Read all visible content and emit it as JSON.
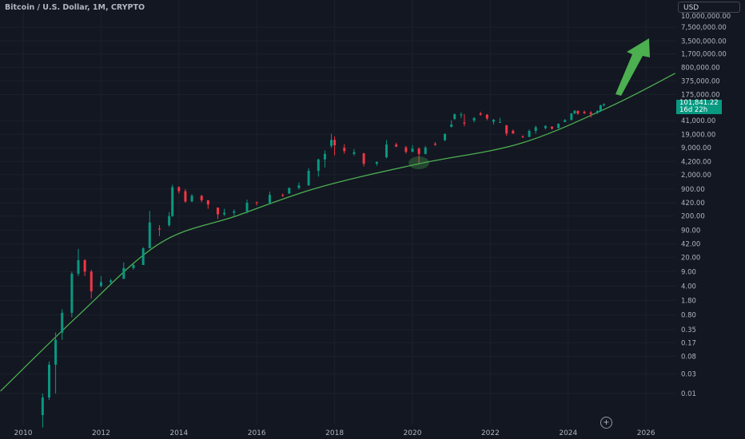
{
  "header": {
    "title": "Bitcoin / U.S. Dollar, 1M, CRYPTO",
    "currency": "USD"
  },
  "price_label": {
    "price": "101,841.22",
    "countdown": "16d 22h"
  },
  "colors": {
    "background": "#131722",
    "up": "#089981",
    "down": "#f23645",
    "trendline": "#4caf50",
    "arrow": "#4caf50",
    "grid": "#1c202b"
  },
  "chart_data": {
    "type": "candlestick",
    "title": "Bitcoin / U.S. Dollar, 1M, CRYPTO",
    "y_scale": "log",
    "ylim": [
      0.0015,
      10000000
    ],
    "xlim": [
      "2009-06",
      "2027-10"
    ],
    "grid": true,
    "x_ticks": [
      "2010",
      "2012",
      "2014",
      "2016",
      "2018",
      "2020",
      "2022",
      "2024",
      "2026"
    ],
    "y_ticks": [
      {
        "value": 10000000,
        "label": "10,000,000.00"
      },
      {
        "value": 7500000,
        "label": "7,500,000.00"
      },
      {
        "value": 3500000,
        "label": "3,500,000.00"
      },
      {
        "value": 1700000,
        "label": "1,700,000.00"
      },
      {
        "value": 800000,
        "label": "800,000.00"
      },
      {
        "value": 375000,
        "label": "375,000.00"
      },
      {
        "value": 175000,
        "label": "175,000.00"
      },
      {
        "value": 41000,
        "label": "41,000.00"
      },
      {
        "value": 19000,
        "label": "19,000.00"
      },
      {
        "value": 9000,
        "label": "9,000.00"
      },
      {
        "value": 4200,
        "label": "4,200.00"
      },
      {
        "value": 2000,
        "label": "2,000.00"
      },
      {
        "value": 900,
        "label": "900.00"
      },
      {
        "value": 420,
        "label": "420.00"
      },
      {
        "value": 200,
        "label": "200.00"
      },
      {
        "value": 90,
        "label": "90.00"
      },
      {
        "value": 42,
        "label": "42.00"
      },
      {
        "value": 20,
        "label": "20.00"
      },
      {
        "value": 9,
        "label": "9.00"
      },
      {
        "value": 4,
        "label": "4.00"
      },
      {
        "value": 1.8,
        "label": "1.80"
      },
      {
        "value": 0.8,
        "label": "0.80"
      },
      {
        "value": 0.35,
        "label": "0.35"
      },
      {
        "value": 0.17,
        "label": "0.17"
      },
      {
        "value": 0.08,
        "label": "0.08"
      },
      {
        "value": 0.03,
        "label": "0.03"
      },
      {
        "value": 0.01,
        "label": "0.01"
      }
    ],
    "candles": [
      [
        "2010-07",
        0.003,
        0.01,
        0.0015,
        0.008
      ],
      [
        "2010-09",
        0.008,
        0.06,
        0.007,
        0.05
      ],
      [
        "2010-11",
        0.05,
        0.3,
        0.01,
        0.2
      ],
      [
        "2011-01",
        0.3,
        1.1,
        0.2,
        0.9
      ],
      [
        "2011-04",
        0.9,
        9,
        0.7,
        8
      ],
      [
        "2011-06",
        8,
        32,
        7,
        17
      ],
      [
        "2011-08",
        17,
        18,
        7,
        9
      ],
      [
        "2011-10",
        9,
        10,
        2,
        3
      ],
      [
        "2012-01",
        4,
        7,
        3.8,
        5
      ],
      [
        "2012-04",
        5,
        6,
        4.5,
        5.5
      ],
      [
        "2012-08",
        6,
        15,
        6,
        11
      ],
      [
        "2012-11",
        11,
        14,
        10,
        13
      ],
      [
        "2013-02",
        13,
        35,
        13,
        33
      ],
      [
        "2013-04",
        33,
        266,
        50,
        140
      ],
      [
        "2013-07",
        100,
        120,
        65,
        95
      ],
      [
        "2013-10",
        120,
        250,
        110,
        200
      ],
      [
        "2013-11",
        200,
        1150,
        190,
        1000
      ],
      [
        "2014-01",
        1000,
        1050,
        700,
        800
      ],
      [
        "2014-03",
        800,
        900,
        420,
        450
      ],
      [
        "2014-05",
        450,
        680,
        440,
        620
      ],
      [
        "2014-08",
        620,
        650,
        430,
        480
      ],
      [
        "2014-10",
        480,
        490,
        300,
        380
      ],
      [
        "2015-01",
        320,
        320,
        170,
        220
      ],
      [
        "2015-03",
        220,
        300,
        200,
        240
      ],
      [
        "2015-06",
        240,
        290,
        200,
        260
      ],
      [
        "2015-10",
        260,
        500,
        230,
        420
      ],
      [
        "2016-01",
        430,
        450,
        360,
        415
      ],
      [
        "2016-05",
        415,
        780,
        400,
        650
      ],
      [
        "2016-09",
        650,
        700,
        580,
        620
      ],
      [
        "2016-11",
        700,
        980,
        690,
        960
      ],
      [
        "2017-02",
        960,
        1300,
        890,
        1100
      ],
      [
        "2017-05",
        1100,
        2900,
        1100,
        2500
      ],
      [
        "2017-08",
        2500,
        4900,
        1800,
        4700
      ],
      [
        "2017-10",
        4700,
        7800,
        3000,
        6400
      ],
      [
        "2017-12",
        10000,
        19800,
        9000,
        14000
      ],
      [
        "2018-01",
        14000,
        17000,
        5900,
        10300
      ],
      [
        "2018-04",
        9000,
        11000,
        6500,
        7500
      ],
      [
        "2018-07",
        6400,
        8400,
        5800,
        7000
      ],
      [
        "2018-10",
        6600,
        6800,
        3200,
        3700
      ],
      [
        "2019-02",
        3700,
        4200,
        3300,
        4100
      ],
      [
        "2019-05",
        5300,
        13800,
        5000,
        10800
      ],
      [
        "2019-08",
        10800,
        12000,
        9400,
        9600
      ],
      [
        "2019-11",
        9200,
        10000,
        6500,
        7200
      ],
      [
        "2020-01",
        7200,
        10500,
        7000,
        8600
      ],
      [
        "2020-03",
        8600,
        9200,
        3800,
        6400
      ],
      [
        "2020-05",
        6400,
        10000,
        6200,
        9100
      ],
      [
        "2020-08",
        11300,
        12400,
        10000,
        10700
      ],
      [
        "2020-11",
        13800,
        19900,
        13000,
        19700
      ],
      [
        "2021-01",
        29000,
        42000,
        28000,
        33000
      ],
      [
        "2021-02",
        45000,
        61000,
        43000,
        58800
      ],
      [
        "2021-04",
        57000,
        64900,
        47000,
        57700
      ],
      [
        "2021-05",
        37000,
        59000,
        30000,
        35000
      ],
      [
        "2021-08",
        41500,
        50000,
        37000,
        47000
      ],
      [
        "2021-10",
        61300,
        67000,
        54000,
        57000
      ],
      [
        "2021-12",
        57000,
        59000,
        42000,
        46000
      ],
      [
        "2022-02",
        38500,
        45000,
        33000,
        43000
      ],
      [
        "2022-04",
        37600,
        48000,
        37000,
        38000
      ],
      [
        "2022-06",
        31700,
        31900,
        17600,
        19900
      ],
      [
        "2022-08",
        23300,
        25000,
        19600,
        20000
      ],
      [
        "2022-11",
        17100,
        18000,
        15500,
        16500
      ],
      [
        "2023-01",
        16500,
        25000,
        16500,
        23100
      ],
      [
        "2023-03",
        23100,
        31000,
        19600,
        28400
      ],
      [
        "2023-06",
        27000,
        31800,
        25000,
        30400
      ],
      [
        "2023-08",
        29200,
        30000,
        25000,
        26000
      ],
      [
        "2023-10",
        27000,
        35000,
        26500,
        34500
      ],
      [
        "2023-12",
        37700,
        44700,
        37600,
        42300
      ],
      [
        "2024-02",
        42500,
        63000,
        41800,
        61100
      ],
      [
        "2024-03",
        61100,
        73800,
        59000,
        71000
      ],
      [
        "2024-04",
        71000,
        72000,
        56500,
        60600
      ],
      [
        "2024-06",
        67500,
        72000,
        58400,
        62700
      ],
      [
        "2024-08",
        64600,
        70000,
        49000,
        59000
      ],
      [
        "2024-10",
        63300,
        73600,
        58900,
        70200
      ],
      [
        "2024-11",
        70200,
        99600,
        66800,
        96400
      ],
      [
        "2024-12",
        96400,
        108000,
        90000,
        101841.22
      ]
    ],
    "trendline": [
      [
        "2009-06",
        0.0114
      ],
      [
        "2011-06",
        0.78
      ],
      [
        "2013-07",
        43
      ],
      [
        "2015-07",
        205
      ],
      [
        "2017-08",
        980
      ],
      [
        "2020-03",
        3700
      ],
      [
        "2022-10",
        11300
      ],
      [
        "2025-01",
        83000
      ],
      [
        "2026-10",
        575000
      ]
    ]
  }
}
